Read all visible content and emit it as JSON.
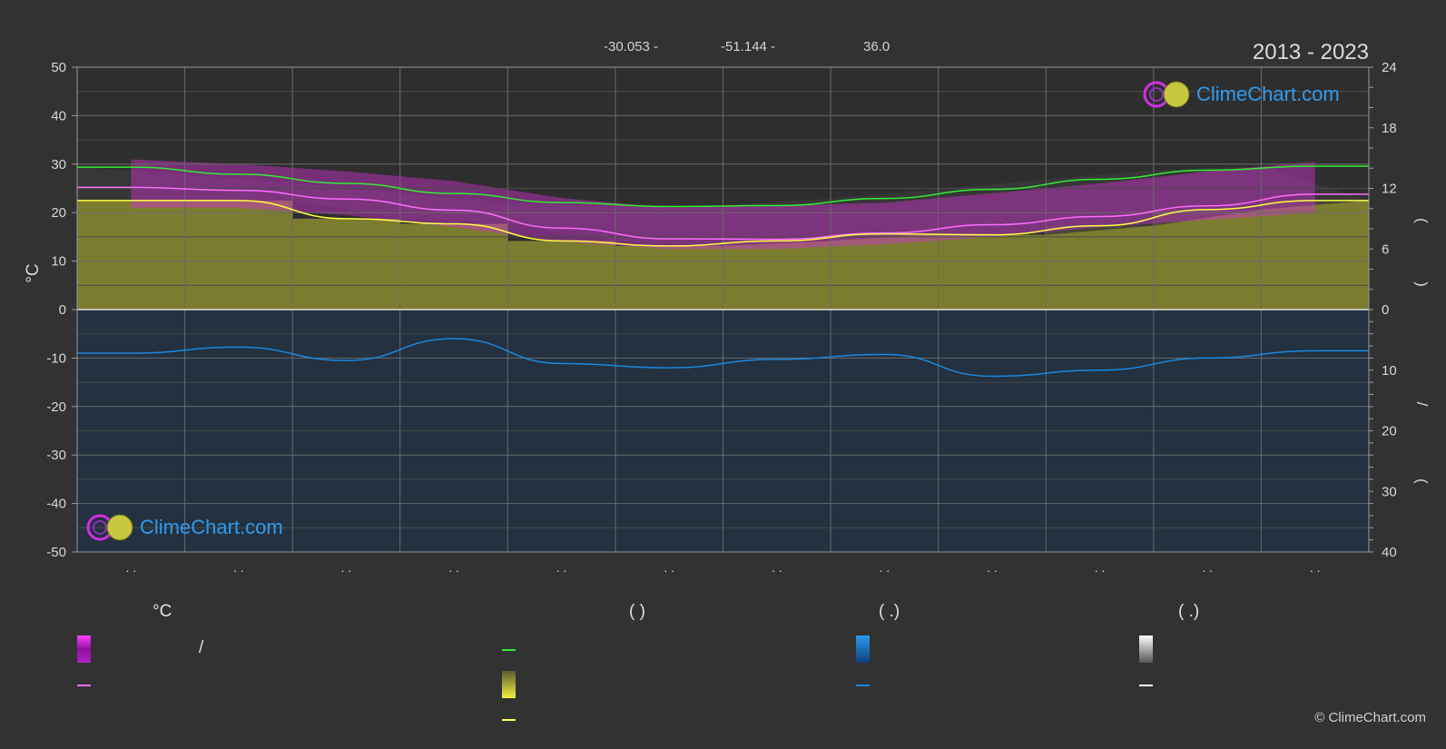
{
  "header": {
    "lat_text": "-30.053 -",
    "lon_text": "-51.144 -",
    "elev_text": "36.0",
    "period": "2013 - 2023"
  },
  "logos": {
    "text": "ClimeChart.com"
  },
  "copyright": "© ClimeChart.com",
  "legend": {
    "temp_head": "°C",
    "sun_head": "(          )",
    "rain_head": "(    .)",
    "snow_head": "(    .)",
    "slash_text": "/"
  },
  "colors": {
    "background": "#323232",
    "day_night_temp": "#e020e0",
    "mean_temp": "#ff6cff",
    "daylight": "#33ee33",
    "sunshine": "#d8d838",
    "sunshine_line": "#ffff44",
    "rain": "#1a88e0",
    "snow": "#ffffff"
  },
  "chart_data": {
    "type": "line",
    "x_months": [
      1,
      2,
      3,
      4,
      5,
      6,
      7,
      8,
      9,
      10,
      11,
      12
    ],
    "month_tick_labels": [
      ". .",
      ". .",
      ". .",
      ". .",
      ". .",
      ". .",
      ". .",
      ". .",
      ". .",
      ". .",
      ". .",
      ". ."
    ],
    "left_axis": {
      "unit": "°C",
      "min": -50,
      "max": 50,
      "ticks": [
        50,
        40,
        30,
        20,
        10,
        0,
        -10,
        -20,
        -30,
        -40,
        -50
      ]
    },
    "right_axis_upper": {
      "min": 0,
      "max": 24,
      "ticks": [
        24,
        18,
        12,
        6,
        0
      ]
    },
    "right_axis_lower": {
      "min": 0,
      "max": 40,
      "ticks": [
        10,
        20,
        30,
        40
      ]
    },
    "right_axis_marks": [
      "(",
      ")",
      "(",
      ")",
      "/",
      "(",
      ".",
      ")"
    ],
    "grid": true,
    "series": [
      {
        "key": "daylight",
        "axis": "hours",
        "values": [
          14.1,
          13.4,
          12.5,
          11.5,
          10.6,
          10.2,
          10.3,
          11.0,
          11.9,
          12.9,
          13.8,
          14.2
        ]
      },
      {
        "key": "mean_temp",
        "axis": "temperature",
        "values": [
          25.2,
          24.6,
          22.8,
          20.5,
          16.8,
          14.6,
          14.5,
          15.8,
          17.5,
          19.2,
          21.4,
          23.8
        ]
      },
      {
        "key": "sunshine",
        "axis": "hours",
        "values": [
          10.8,
          10.8,
          9.0,
          8.5,
          6.8,
          6.3,
          6.8,
          7.5,
          7.4,
          8.3,
          9.9,
          10.8
        ]
      },
      {
        "key": "precipitation",
        "axis": "mm_day",
        "values": [
          7.2,
          6.2,
          8.4,
          4.8,
          8.9,
          9.6,
          8.2,
          7.4,
          11.0,
          10.0,
          8.0,
          6.8
        ]
      },
      {
        "key": "day_night_temp_band",
        "axis": "temperature",
        "high": [
          31,
          30,
          28.5,
          26.5,
          23,
          21,
          21.5,
          22,
          24,
          26,
          28.5,
          30.5
        ],
        "low": [
          21,
          21,
          19.5,
          17,
          14,
          12.5,
          12.5,
          13.5,
          15,
          17,
          18.5,
          20
        ]
      }
    ]
  }
}
